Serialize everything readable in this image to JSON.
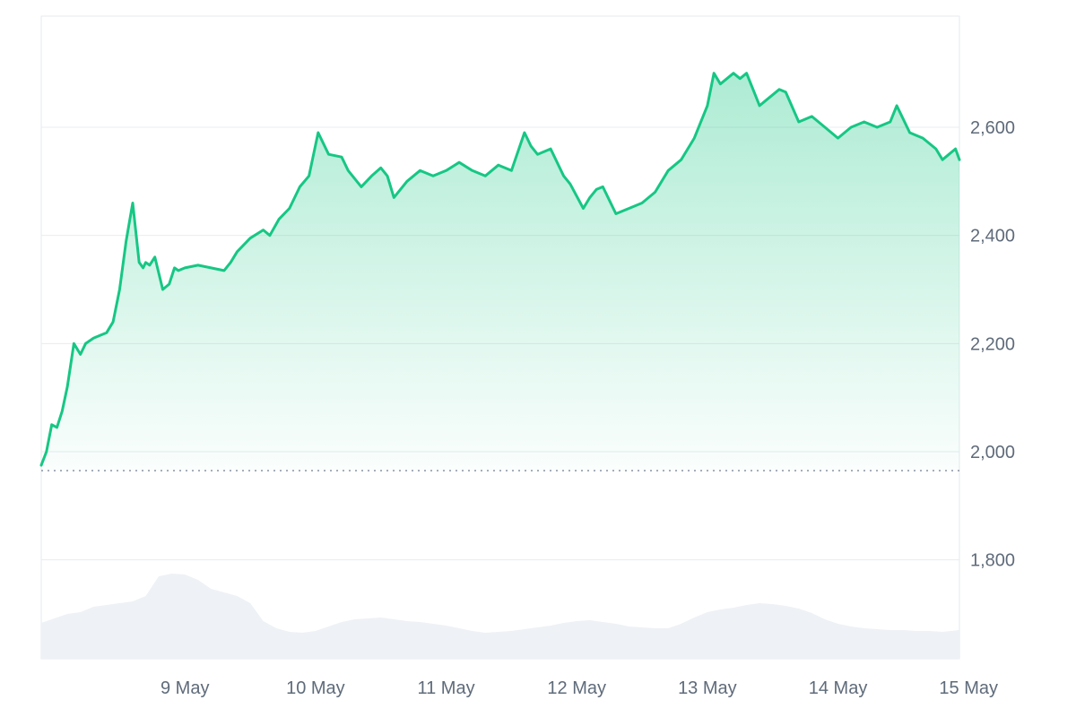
{
  "chart_data": {
    "type": "area",
    "title": "",
    "xlabel": "",
    "ylabel": "",
    "x_ticks": [
      "9 May",
      "10 May",
      "11 May",
      "12 May",
      "13 May",
      "14 May",
      "15 May"
    ],
    "y_ticks": [
      "2,600",
      "2,400",
      "2,200",
      "2,000",
      "1,800"
    ],
    "y_tick_values": [
      2600,
      2400,
      2200,
      2000,
      1800
    ],
    "ylim": [
      1620,
      2820
    ],
    "xlim_days": [
      8.4,
      15.43
    ],
    "reference_line": 1965,
    "grid": true,
    "colors": {
      "line": "#16c784",
      "area_top": "#16c784",
      "volume": "#eef1f5",
      "reference": "#8a94a3"
    },
    "series": [
      {
        "x_days": [
          8.4,
          8.44,
          8.48,
          8.52,
          8.56,
          8.6,
          8.65,
          8.7,
          8.74,
          8.8,
          8.85,
          8.9,
          8.95,
          9.0,
          9.05,
          9.1,
          9.15,
          9.18,
          9.2,
          9.23,
          9.27,
          9.33,
          9.38,
          9.42,
          9.45,
          9.5,
          9.6,
          9.7,
          9.8,
          9.85,
          9.9,
          10.0,
          10.1,
          10.15,
          10.22,
          10.3,
          10.38,
          10.45,
          10.52,
          10.6,
          10.7,
          10.75,
          10.85,
          10.93,
          11.0,
          11.05,
          11.1,
          11.2,
          11.3,
          11.4,
          11.5,
          11.6,
          11.7,
          11.8,
          11.9,
          12.0,
          12.1,
          12.12,
          12.15,
          12.2,
          12.3,
          12.4,
          12.45,
          12.55,
          12.6,
          12.65,
          12.7,
          12.8,
          12.9,
          13.0,
          13.1,
          13.2,
          13.3,
          13.4,
          13.5,
          13.55,
          13.6,
          13.65,
          13.7,
          13.75,
          13.8,
          13.9,
          13.95,
          14.05,
          14.1,
          14.2,
          14.3,
          14.4,
          14.5,
          14.6,
          14.7,
          14.8,
          14.9,
          14.95,
          15.05,
          15.15,
          15.25,
          15.3,
          15.35,
          15.4,
          15.43
        ],
        "values": [
          1975,
          2000,
          2050,
          2045,
          2075,
          2120,
          2200,
          2180,
          2200,
          2210,
          2215,
          2220,
          2240,
          2300,
          2390,
          2460,
          2350,
          2340,
          2350,
          2345,
          2360,
          2300,
          2310,
          2340,
          2335,
          2340,
          2345,
          2340,
          2335,
          2350,
          2370,
          2395,
          2410,
          2400,
          2430,
          2450,
          2490,
          2510,
          2590,
          2550,
          2545,
          2520,
          2490,
          2510,
          2525,
          2510,
          2470,
          2500,
          2520,
          2510,
          2520,
          2535,
          2520,
          2510,
          2530,
          2520,
          2590,
          2580,
          2565,
          2550,
          2560,
          2510,
          2495,
          2450,
          2470,
          2485,
          2490,
          2440,
          2450,
          2460,
          2480,
          2520,
          2540,
          2580,
          2640,
          2700,
          2680,
          2690,
          2700,
          2690,
          2700,
          2640,
          2650,
          2670,
          2665,
          2610,
          2620,
          2600,
          2580,
          2600,
          2610,
          2600,
          2610,
          2640,
          2590,
          2580,
          2560,
          2540,
          2550,
          2560,
          2540
        ]
      }
    ],
    "volume_series": {
      "x_days": [
        8.4,
        8.5,
        8.6,
        8.7,
        8.8,
        8.9,
        9.0,
        9.1,
        9.2,
        9.3,
        9.4,
        9.5,
        9.6,
        9.7,
        9.8,
        9.9,
        10.0,
        10.1,
        10.2,
        10.3,
        10.4,
        10.5,
        10.6,
        10.7,
        10.8,
        10.9,
        11.0,
        11.1,
        11.2,
        11.3,
        11.4,
        11.5,
        11.6,
        11.7,
        11.8,
        11.9,
        12.0,
        12.1,
        12.2,
        12.3,
        12.4,
        12.5,
        12.6,
        12.7,
        12.8,
        12.9,
        13.0,
        13.1,
        13.2,
        13.3,
        13.4,
        13.5,
        13.6,
        13.7,
        13.8,
        13.9,
        14.0,
        14.1,
        14.2,
        14.3,
        14.4,
        14.5,
        14.6,
        14.7,
        14.8,
        14.9,
        15.0,
        15.1,
        15.2,
        15.3,
        15.43
      ],
      "relative_values": [
        0.4,
        0.45,
        0.5,
        0.52,
        0.58,
        0.6,
        0.62,
        0.64,
        0.7,
        0.92,
        0.95,
        0.94,
        0.88,
        0.78,
        0.74,
        0.7,
        0.62,
        0.42,
        0.34,
        0.3,
        0.29,
        0.31,
        0.36,
        0.41,
        0.44,
        0.45,
        0.46,
        0.44,
        0.42,
        0.41,
        0.39,
        0.37,
        0.34,
        0.31,
        0.29,
        0.3,
        0.31,
        0.33,
        0.35,
        0.37,
        0.4,
        0.42,
        0.43,
        0.41,
        0.39,
        0.36,
        0.35,
        0.34,
        0.34,
        0.39,
        0.46,
        0.52,
        0.55,
        0.57,
        0.6,
        0.62,
        0.61,
        0.59,
        0.56,
        0.51,
        0.44,
        0.39,
        0.36,
        0.34,
        0.33,
        0.32,
        0.32,
        0.31,
        0.31,
        0.3,
        0.32
      ]
    }
  }
}
